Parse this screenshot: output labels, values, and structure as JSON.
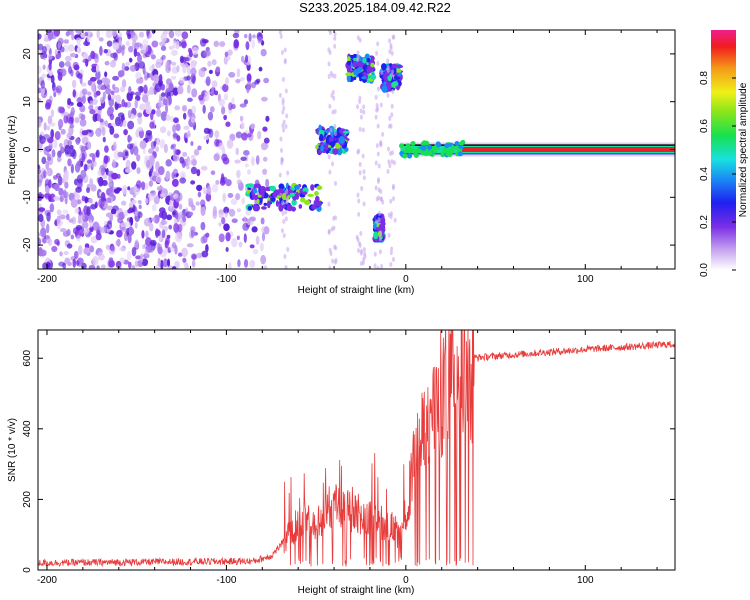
{
  "title": "S233.2025.184.09.42.R22",
  "colors": {
    "snr_line": "#e83b3b",
    "speck": "#7b2ee6",
    "band": "#e8202a",
    "axis": "#000000"
  },
  "colorbar": {
    "label": "Normalized spectral amplitude",
    "ticks": [
      "0.0",
      "0.2",
      "0.4",
      "0.6",
      "0.8"
    ],
    "tick_values": [
      0.0,
      0.2,
      0.4,
      0.6,
      0.8
    ],
    "range": [
      0,
      1
    ]
  },
  "chart_data": [
    {
      "type": "heatmap",
      "xlabel": "Height of straight line (km)",
      "ylabel": "Frequency (Hz)",
      "xlim": [
        -205,
        150
      ],
      "ylim": [
        -25,
        25
      ],
      "xticks": [
        "-200",
        "-100",
        "0",
        "100"
      ],
      "xtick_values": [
        -200,
        -100,
        0,
        100
      ],
      "yticks": [
        "-20",
        "-10",
        "0",
        "10",
        "20"
      ],
      "ytick_values": [
        -20,
        -10,
        0,
        10,
        20
      ],
      "features": [
        {
          "kind": "noise-field",
          "x_range": [
            -205,
            -77
          ],
          "y_range": [
            -25,
            25
          ],
          "amplitude": 0.15
        },
        {
          "kind": "cluster",
          "x_range": [
            -88,
            -48
          ],
          "y_center": -10,
          "amplitude": 0.45
        },
        {
          "kind": "cluster",
          "x_range": [
            -49,
            -33
          ],
          "y_center": 2,
          "amplitude": 0.4
        },
        {
          "kind": "cluster",
          "x_range": [
            -32,
            -18
          ],
          "y_center": 17,
          "amplitude": 0.45
        },
        {
          "kind": "cluster",
          "x_range": [
            -13,
            -3
          ],
          "y_center": 15,
          "amplitude": 0.4
        },
        {
          "kind": "cluster",
          "x_range": [
            -17,
            -13
          ],
          "y_center": -16.5,
          "amplitude": 0.35
        },
        {
          "kind": "band",
          "x_range": [
            -3,
            150
          ],
          "y_center": 0,
          "amplitude": 0.95
        }
      ]
    },
    {
      "type": "line",
      "xlabel": "Height of straight line (km)",
      "ylabel": "SNR (10 * v/v)",
      "xlim": [
        -205,
        150
      ],
      "ylim": [
        0,
        680
      ],
      "xticks": [
        "-200",
        "-100",
        "0",
        "100"
      ],
      "xtick_values": [
        -200,
        -100,
        0,
        100
      ],
      "yticks": [
        "0",
        "200",
        "400",
        "600"
      ],
      "ytick_values": [
        0,
        200,
        400,
        600
      ],
      "series": [
        {
          "profile_x": [
            -205,
            -85,
            -75,
            -68,
            -60,
            -50,
            -40,
            -30,
            -20,
            -10,
            -2,
            5,
            15,
            25,
            35,
            60,
            100,
            150
          ],
          "profile_y": [
            20,
            25,
            40,
            80,
            150,
            140,
            190,
            170,
            160,
            130,
            100,
            330,
            470,
            580,
            600,
            610,
            625,
            640
          ],
          "noise": 10
        }
      ]
    }
  ]
}
